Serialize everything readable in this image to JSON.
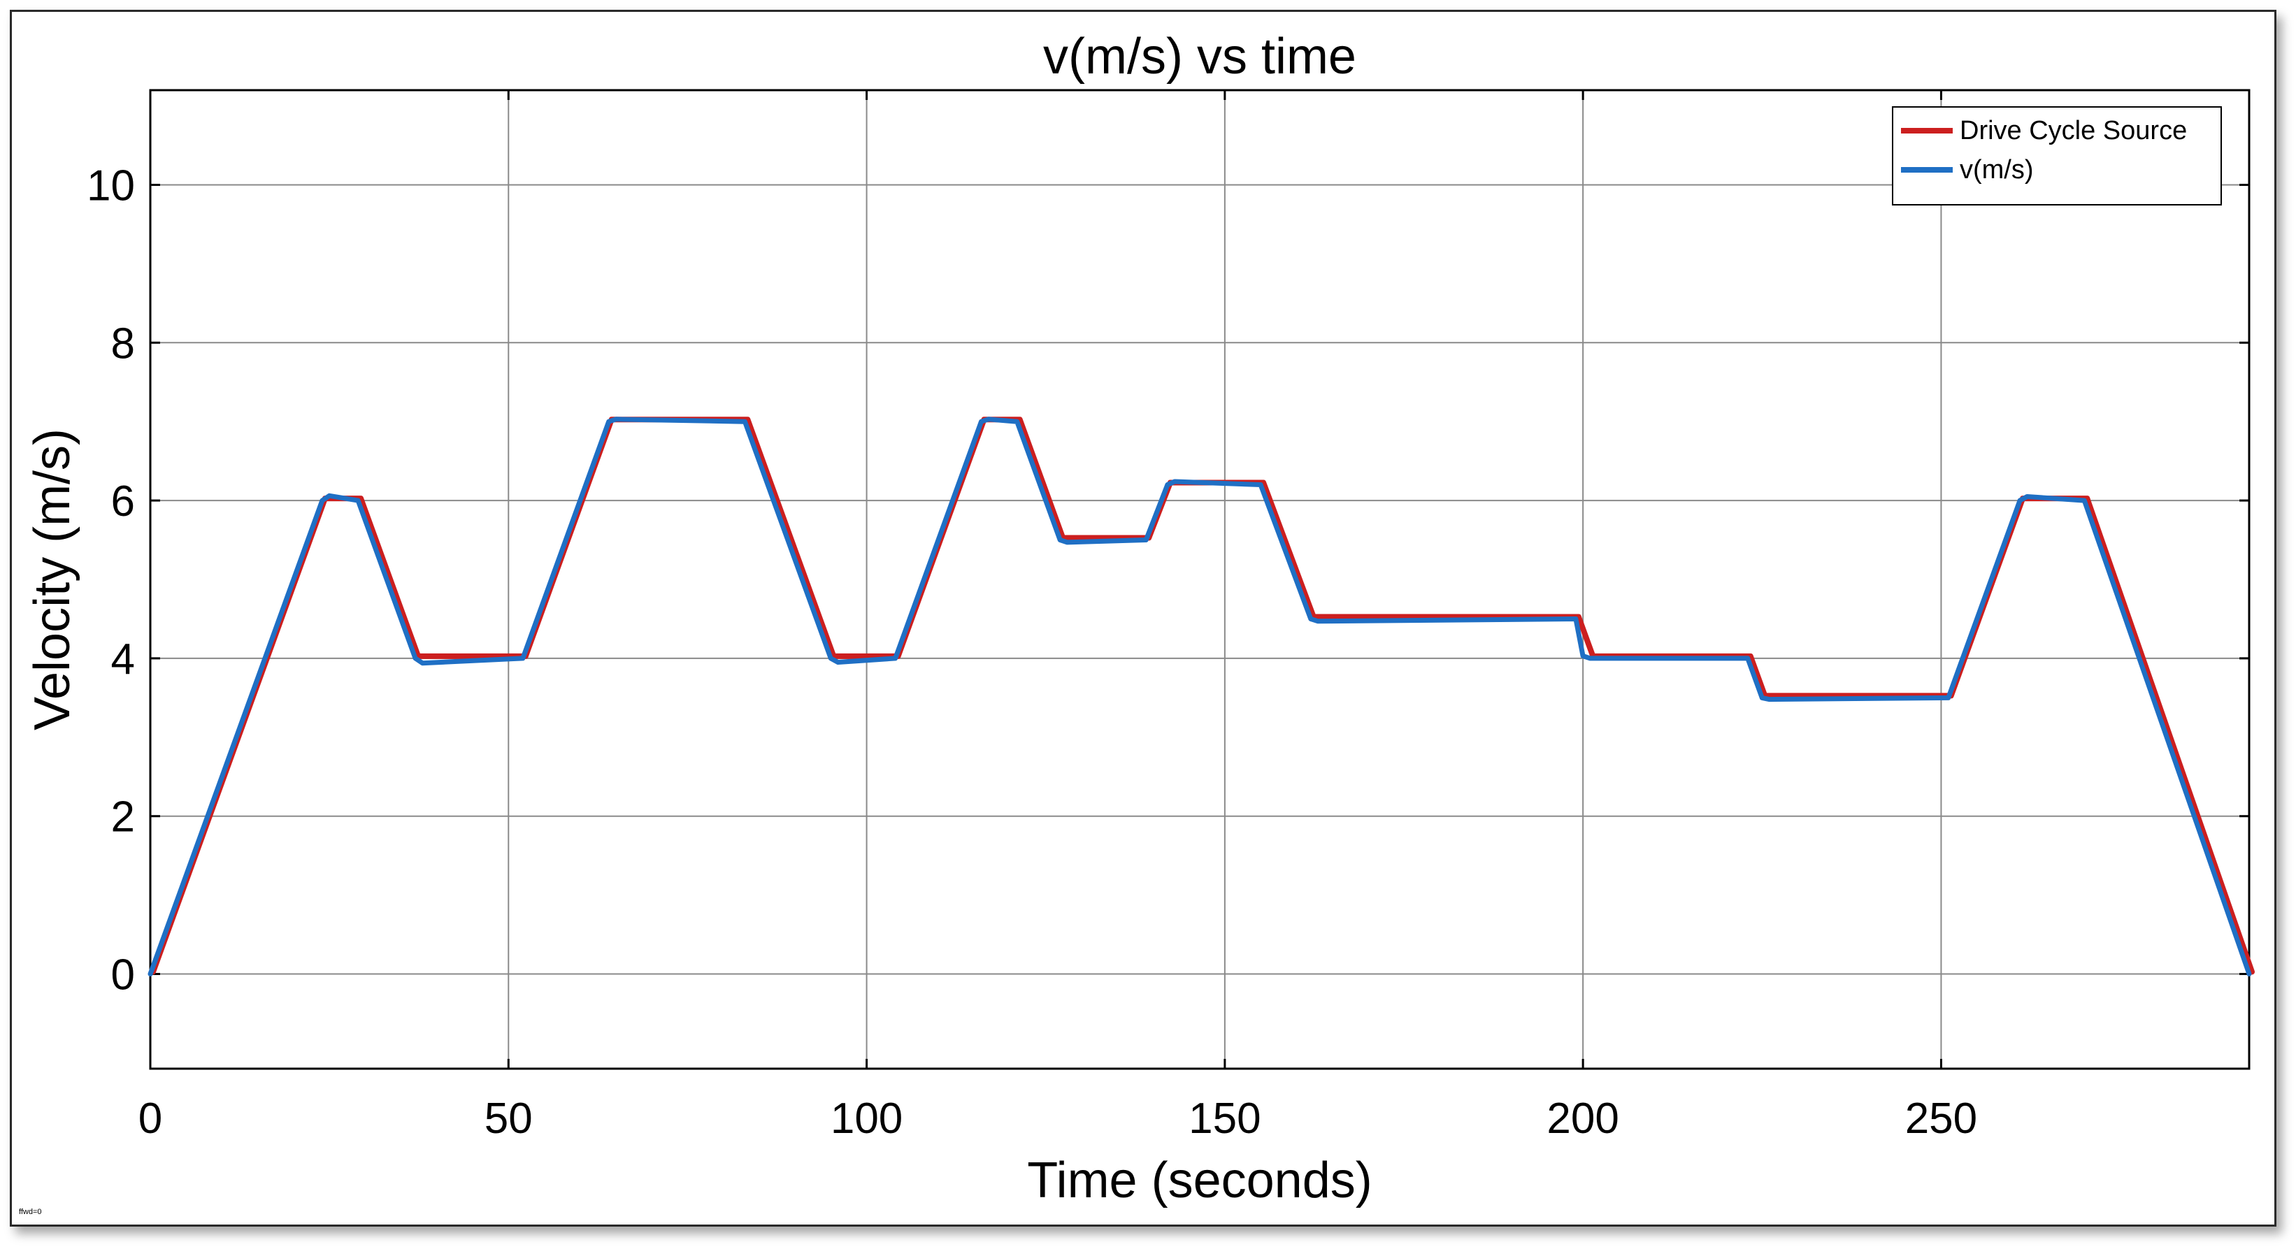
{
  "chart_data": {
    "type": "line",
    "title": "v(m/s) vs time",
    "xlabel": "Time (seconds)",
    "ylabel": "Velocity (m/s)",
    "xlim": [
      0,
      293
    ],
    "ylim": [
      -1.2,
      11.2
    ],
    "xticks": [
      0,
      50,
      100,
      150,
      200,
      250
    ],
    "yticks": [
      0,
      2,
      4,
      6,
      8,
      10
    ],
    "grid": true,
    "legend_position": "top-right",
    "corner_note": "ffwd=0",
    "series": [
      {
        "name": "Drive Cycle Source",
        "color": "#cc1f1f",
        "x": [
          0,
          24,
          29,
          37,
          52,
          64,
          83,
          95,
          104,
          116,
          121,
          127,
          139,
          142,
          155,
          162,
          199,
          201,
          223,
          225,
          251,
          261,
          270,
          293
        ],
        "y": [
          0,
          6,
          6,
          4,
          4,
          7,
          7,
          4,
          4,
          7,
          7,
          5.5,
          5.5,
          6.2,
          6.2,
          4.5,
          4.5,
          4,
          4,
          3.5,
          3.5,
          6,
          6,
          0
        ]
      },
      {
        "name": "v(m/s)",
        "color": "#1f6fc4",
        "x": [
          0,
          24,
          25,
          29,
          37,
          38,
          52,
          64,
          65,
          83,
          95,
          96,
          104,
          116,
          117,
          121,
          127,
          128,
          139,
          142,
          143,
          155,
          162,
          163,
          199,
          200,
          201,
          223,
          225,
          226,
          251,
          261,
          262,
          270,
          293
        ],
        "y": [
          0,
          6,
          6.06,
          6,
          4,
          3.94,
          4,
          7,
          7.03,
          7,
          4,
          3.95,
          4,
          7,
          7.03,
          7,
          5.5,
          5.47,
          5.5,
          6.2,
          6.24,
          6.2,
          4.5,
          4.47,
          4.5,
          4.03,
          4,
          4,
          3.5,
          3.48,
          3.5,
          6,
          6.05,
          6,
          0
        ]
      }
    ]
  }
}
